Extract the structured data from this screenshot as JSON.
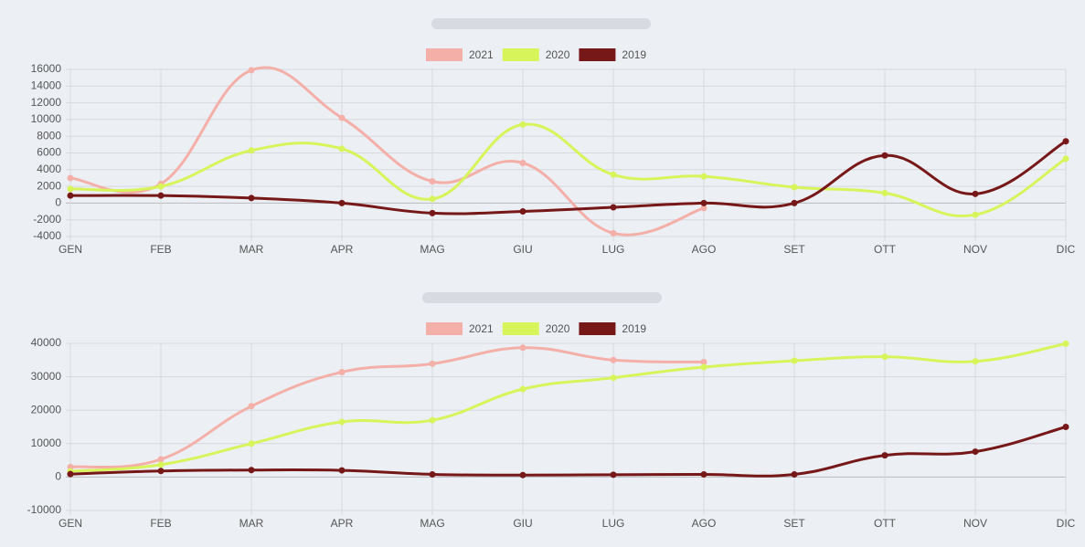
{
  "chart_data": [
    {
      "type": "line",
      "categories": [
        "GEN",
        "FEB",
        "MAR",
        "APR",
        "MAG",
        "GIU",
        "LUG",
        "AGO",
        "SET",
        "OTT",
        "NOV",
        "DIC"
      ],
      "series": [
        {
          "name": "2021",
          "color": "#f4b0a8",
          "values": [
            3000,
            2300,
            15900,
            10200,
            2600,
            4800,
            -3600,
            -600,
            null,
            null,
            null,
            null
          ]
        },
        {
          "name": "2020",
          "color": "#d7f55a",
          "values": [
            1700,
            2000,
            6300,
            6500,
            500,
            9400,
            3400,
            3200,
            1900,
            1200,
            -1400,
            5300
          ]
        },
        {
          "name": "2019",
          "color": "#761718",
          "values": [
            900,
            900,
            600,
            0,
            -1200,
            -1000,
            -500,
            0,
            0,
            5700,
            1100,
            7400
          ]
        }
      ],
      "ylim": [
        -4000,
        16000
      ],
      "yticks": [
        -4000,
        -2000,
        0,
        2000,
        4000,
        6000,
        8000,
        10000,
        12000,
        14000,
        16000
      ],
      "grid": true,
      "legend": "top"
    },
    {
      "type": "line",
      "categories": [
        "GEN",
        "FEB",
        "MAR",
        "APR",
        "MAG",
        "GIU",
        "LUG",
        "AGO",
        "SET",
        "OTT",
        "NOV",
        "DIC"
      ],
      "series": [
        {
          "name": "2021",
          "color": "#f4b0a8",
          "values": [
            3000,
            5300,
            21200,
            31400,
            33900,
            38700,
            35000,
            34400,
            null,
            null,
            null,
            null
          ]
        },
        {
          "name": "2020",
          "color": "#d7f55a",
          "values": [
            1700,
            3700,
            10000,
            16500,
            17000,
            26300,
            29700,
            32900,
            34800,
            36000,
            34600,
            39900
          ]
        },
        {
          "name": "2019",
          "color": "#761718",
          "values": [
            900,
            1800,
            2100,
            2000,
            800,
            600,
            700,
            800,
            800,
            6500,
            7600,
            15000
          ]
        }
      ],
      "ylim": [
        -10000,
        40000
      ],
      "yticks": [
        -10000,
        0,
        10000,
        20000,
        30000,
        40000
      ],
      "grid": true,
      "legend": "top"
    }
  ]
}
